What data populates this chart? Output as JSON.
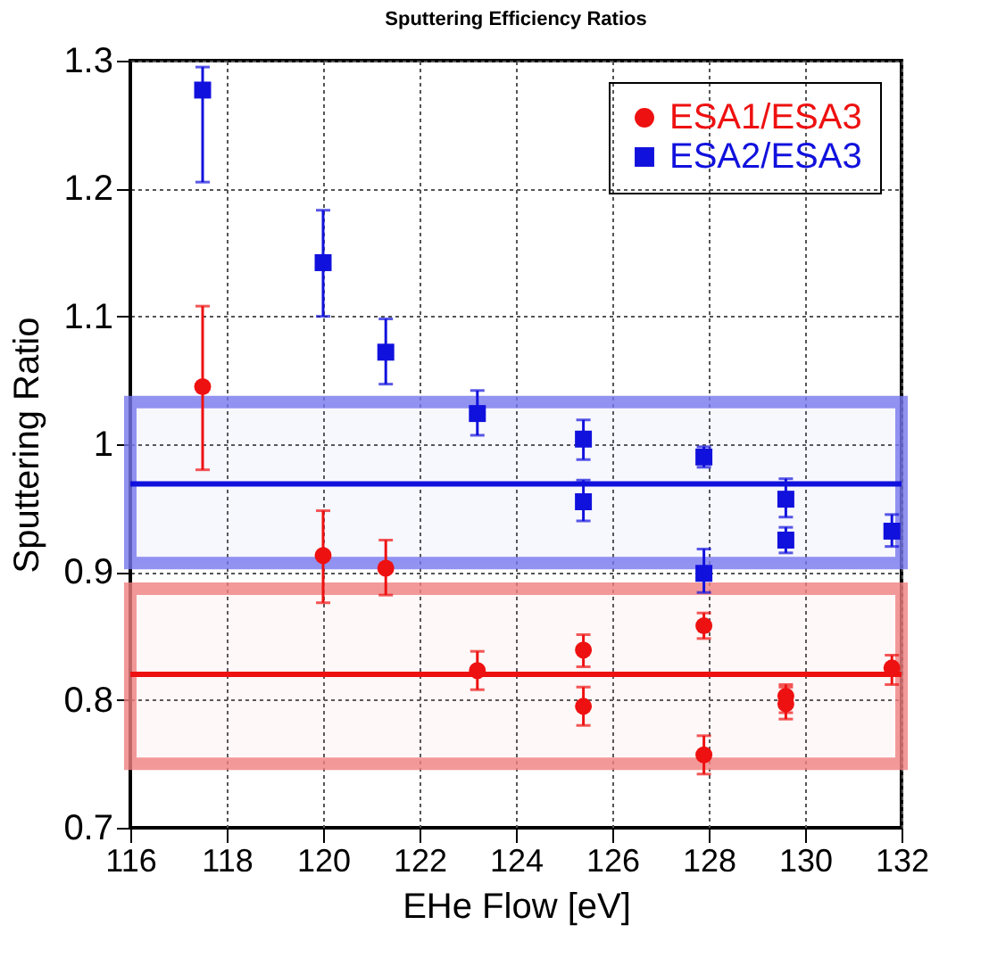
{
  "chart_data": {
    "type": "scatter",
    "title": "Sputtering Efficiency Ratios",
    "xlabel": "EHe Flow [eV]",
    "ylabel": "Sputtering Ratio",
    "xlim": [
      116,
      132
    ],
    "xticks": [
      116,
      118,
      120,
      122,
      124,
      126,
      128,
      130,
      132
    ],
    "ylim": [
      0.7,
      1.3
    ],
    "yticks": [
      0.7,
      0.8,
      0.9,
      1,
      1.1,
      1.2,
      1.3
    ],
    "grid": true,
    "legend": "top right",
    "series": [
      {
        "name": "ESA1/ESA3",
        "color": "#ee1111",
        "marker": "circle",
        "x": [
          117.5,
          120,
          121.3,
          123.2,
          125.4,
          125.4,
          127.9,
          127.9,
          129.6,
          129.6,
          131.8
        ],
        "values": [
          1.045,
          0.913,
          0.903,
          0.823,
          0.839,
          0.795,
          0.858,
          0.757,
          0.803,
          0.797,
          0.825
        ],
        "errors": [
          [
            0.98,
            1.108
          ],
          [
            0.876,
            0.948
          ],
          [
            0.882,
            0.925
          ],
          [
            0.808,
            0.838
          ],
          [
            0.826,
            0.851
          ],
          [
            0.78,
            0.81
          ],
          [
            0.848,
            0.868
          ],
          [
            0.742,
            0.772
          ],
          [
            0.79,
            0.812
          ],
          [
            0.785,
            0.81
          ],
          [
            0.812,
            0.835
          ]
        ]
      },
      {
        "name": "ESA2/ESA3",
        "color": "#1111dd",
        "marker": "square",
        "x": [
          117.5,
          120,
          121.3,
          123.2,
          125.4,
          125.4,
          127.9,
          127.9,
          129.6,
          129.6,
          131.8
        ],
        "values": [
          1.277,
          1.142,
          1.072,
          1.024,
          1.004,
          0.955,
          0.99,
          0.899,
          0.957,
          0.925,
          0.932
        ],
        "errors": [
          [
            1.205,
            1.295
          ],
          [
            1.1,
            1.183
          ],
          [
            1.047,
            1.098
          ],
          [
            1.007,
            1.042
          ],
          [
            0.988,
            1.019
          ],
          [
            0.94,
            0.972
          ],
          [
            0.982,
            0.998
          ],
          [
            0.884,
            0.918
          ],
          [
            0.943,
            0.973
          ],
          [
            0.915,
            0.935
          ],
          [
            0.92,
            0.945
          ]
        ]
      }
    ],
    "ref_lines": [
      {
        "axis": "y",
        "value": 0.969,
        "color": "#1111dd"
      },
      {
        "axis": "y",
        "value": 0.82,
        "color": "#ee1111"
      }
    ],
    "bands": [
      {
        "axis": "y",
        "from": 0.907,
        "to": 1.033,
        "color": "#7777ee"
      },
      {
        "axis": "y",
        "from": 0.75,
        "to": 0.887,
        "color": "#f08080"
      }
    ]
  }
}
